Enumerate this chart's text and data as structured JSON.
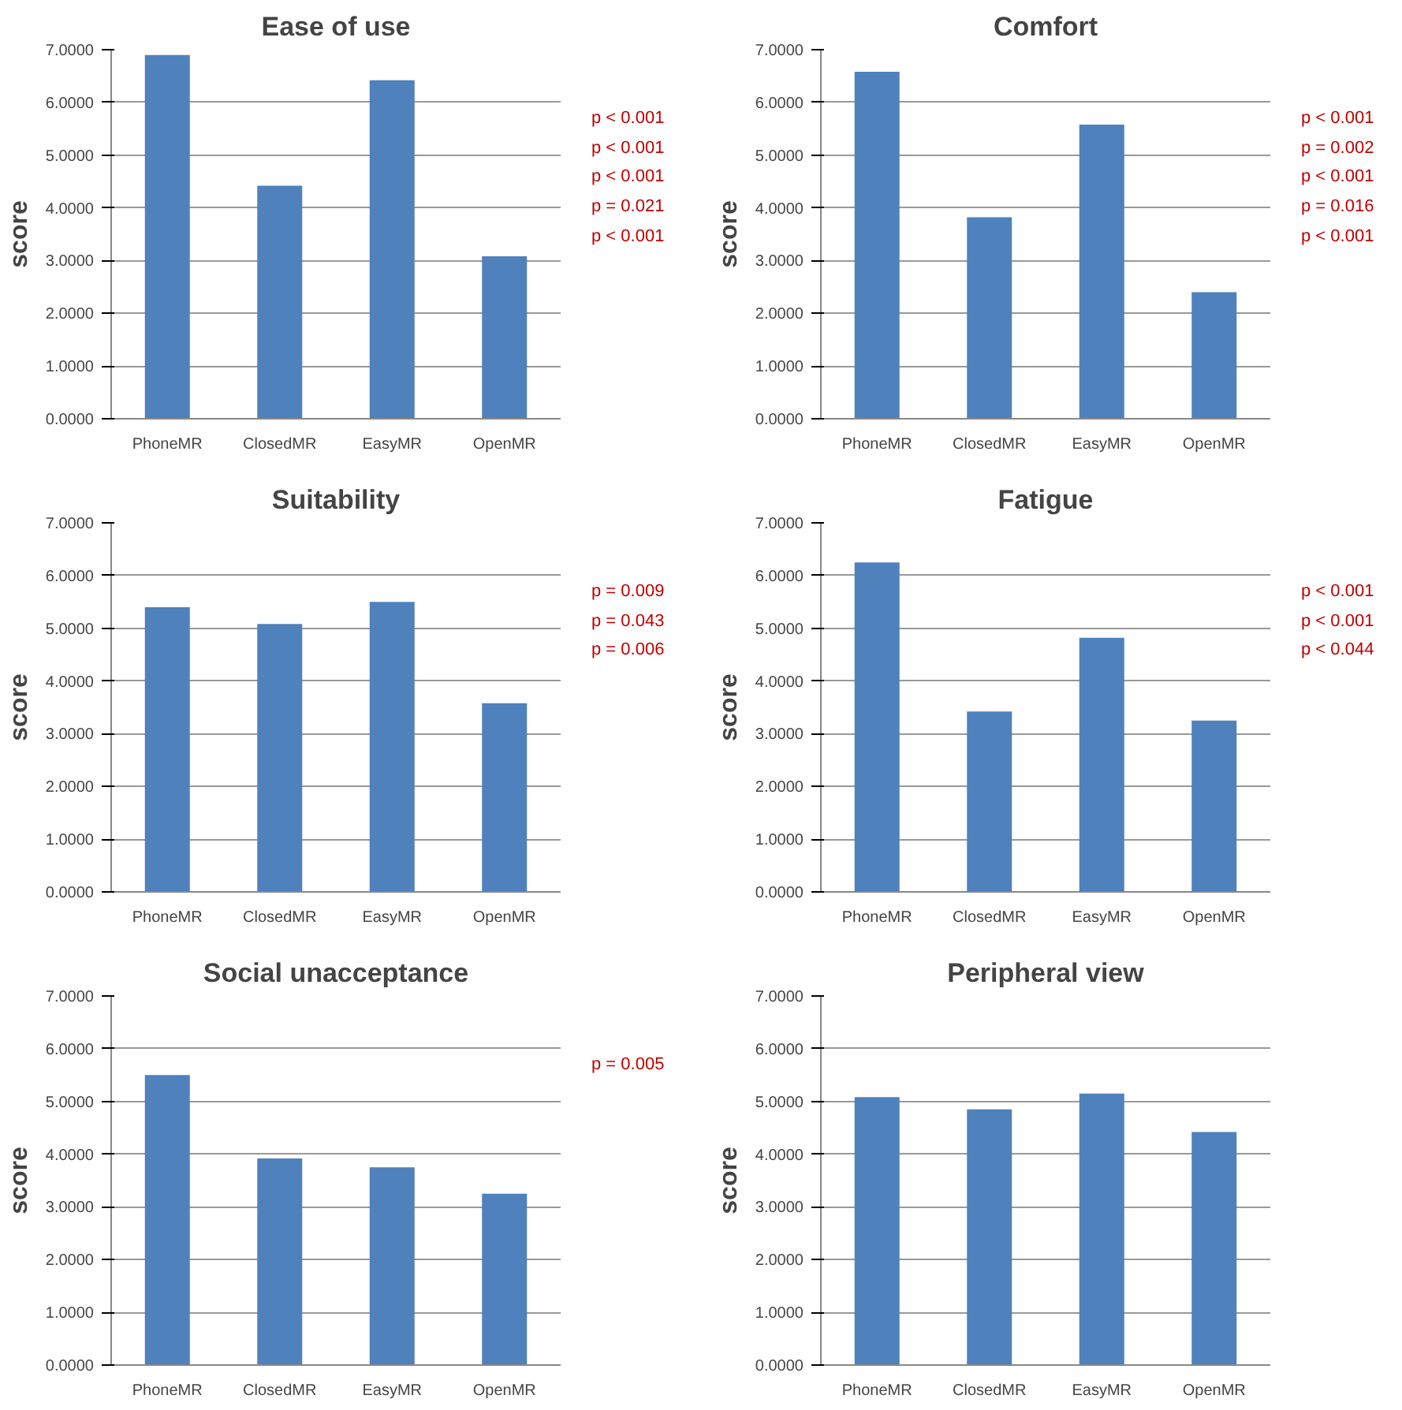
{
  "chart_data": [
    {
      "type": "bar",
      "title": "Ease of use",
      "ylabel": "score",
      "categories": [
        "PhoneMR",
        "ClosedMR",
        "EasyMR",
        "OpenMR"
      ],
      "values": [
        6.9,
        4.42,
        6.42,
        3.08
      ],
      "color": "#4f81bd",
      "ylim": [
        0,
        7
      ],
      "yticks": [
        {
          "value": 0,
          "label": "0.0000"
        },
        {
          "value": 1,
          "label": "1.0000"
        },
        {
          "value": 2,
          "label": "2.0000"
        },
        {
          "value": 3,
          "label": "3.0000"
        },
        {
          "value": 4,
          "label": "4.0000"
        },
        {
          "value": 5,
          "label": "5.0000"
        },
        {
          "value": 6,
          "label": "6.0000"
        },
        {
          "value": 7,
          "label": "7.0000"
        }
      ],
      "grid": "y",
      "annotations": [
        "p < 0.001",
        "p < 0.001",
        "p < 0.001",
        "p = 0.021",
        "p < 0.001"
      ]
    },
    {
      "type": "bar",
      "title": "Comfort",
      "ylabel": "score",
      "categories": [
        "PhoneMR",
        "ClosedMR",
        "EasyMR",
        "OpenMR"
      ],
      "values": [
        6.58,
        3.82,
        5.58,
        2.4
      ],
      "color": "#4f81bd",
      "ylim": [
        0,
        7
      ],
      "yticks": [
        {
          "value": 0,
          "label": "0.0000"
        },
        {
          "value": 1,
          "label": "1.0000"
        },
        {
          "value": 2,
          "label": "2.0000"
        },
        {
          "value": 3,
          "label": "3.0000"
        },
        {
          "value": 4,
          "label": "4.0000"
        },
        {
          "value": 5,
          "label": "5.0000"
        },
        {
          "value": 6,
          "label": "6.0000"
        },
        {
          "value": 7,
          "label": "7.0000"
        }
      ],
      "grid": "y",
      "annotations": [
        "p < 0.001",
        "p = 0.002",
        "p < 0.001",
        "p = 0.016",
        "p < 0.001"
      ]
    },
    {
      "type": "bar",
      "title": "Suitability",
      "ylabel": "score",
      "categories": [
        "PhoneMR",
        "ClosedMR",
        "EasyMR",
        "OpenMR"
      ],
      "values": [
        5.4,
        5.08,
        5.5,
        3.58
      ],
      "color": "#4f81bd",
      "ylim": [
        0,
        7
      ],
      "yticks": [
        {
          "value": 0,
          "label": "0.0000"
        },
        {
          "value": 1,
          "label": "1.0000"
        },
        {
          "value": 2,
          "label": "2.0000"
        },
        {
          "value": 3,
          "label": "3.0000"
        },
        {
          "value": 4,
          "label": "4.0000"
        },
        {
          "value": 5,
          "label": "5.0000"
        },
        {
          "value": 6,
          "label": "6.0000"
        },
        {
          "value": 7,
          "label": "7.0000"
        }
      ],
      "grid": "y",
      "annotations": [
        "p = 0.009",
        "p = 0.043",
        "p = 0.006"
      ]
    },
    {
      "type": "bar",
      "title": "Fatigue",
      "ylabel": "score",
      "categories": [
        "PhoneMR",
        "ClosedMR",
        "EasyMR",
        "OpenMR"
      ],
      "values": [
        6.25,
        3.42,
        4.82,
        3.25
      ],
      "color": "#4f81bd",
      "ylim": [
        0,
        7
      ],
      "yticks": [
        {
          "value": 0,
          "label": "0.0000"
        },
        {
          "value": 1,
          "label": "1.0000"
        },
        {
          "value": 2,
          "label": "2.0000"
        },
        {
          "value": 3,
          "label": "3.0000"
        },
        {
          "value": 4,
          "label": "4.0000"
        },
        {
          "value": 5,
          "label": "5.0000"
        },
        {
          "value": 6,
          "label": "6.0000"
        },
        {
          "value": 7,
          "label": "7.0000"
        }
      ],
      "grid": "y",
      "annotations": [
        "p < 0.001",
        "p < 0.001",
        "p < 0.044"
      ]
    },
    {
      "type": "bar",
      "title": "Social unacceptance",
      "ylabel": "score",
      "categories": [
        "PhoneMR",
        "ClosedMR",
        "EasyMR",
        "OpenMR"
      ],
      "values": [
        5.5,
        3.92,
        3.75,
        3.25
      ],
      "color": "#4f81bd",
      "ylim": [
        0,
        7
      ],
      "yticks": [
        {
          "value": 0,
          "label": "0.0000"
        },
        {
          "value": 1,
          "label": "1.0000"
        },
        {
          "value": 2,
          "label": "2.0000"
        },
        {
          "value": 3,
          "label": "3.0000"
        },
        {
          "value": 4,
          "label": "4.0000"
        },
        {
          "value": 5,
          "label": "5.0000"
        },
        {
          "value": 6,
          "label": "6.0000"
        },
        {
          "value": 7,
          "label": "7.0000"
        }
      ],
      "grid": "y",
      "annotations": [
        "p = 0.005"
      ]
    },
    {
      "type": "bar",
      "title": "Peripheral view",
      "ylabel": "score",
      "categories": [
        "PhoneMR",
        "ClosedMR",
        "EasyMR",
        "OpenMR"
      ],
      "values": [
        5.08,
        4.85,
        5.15,
        4.42
      ],
      "color": "#4f81bd",
      "ylim": [
        0,
        7
      ],
      "yticks": [
        {
          "value": 0,
          "label": "0.0000"
        },
        {
          "value": 1,
          "label": "1.0000"
        },
        {
          "value": 2,
          "label": "2.0000"
        },
        {
          "value": 3,
          "label": "3.0000"
        },
        {
          "value": 4,
          "label": "4.0000"
        },
        {
          "value": 5,
          "label": "5.0000"
        },
        {
          "value": 6,
          "label": "6.0000"
        },
        {
          "value": 7,
          "label": "7.0000"
        }
      ],
      "grid": "y"
    }
  ]
}
